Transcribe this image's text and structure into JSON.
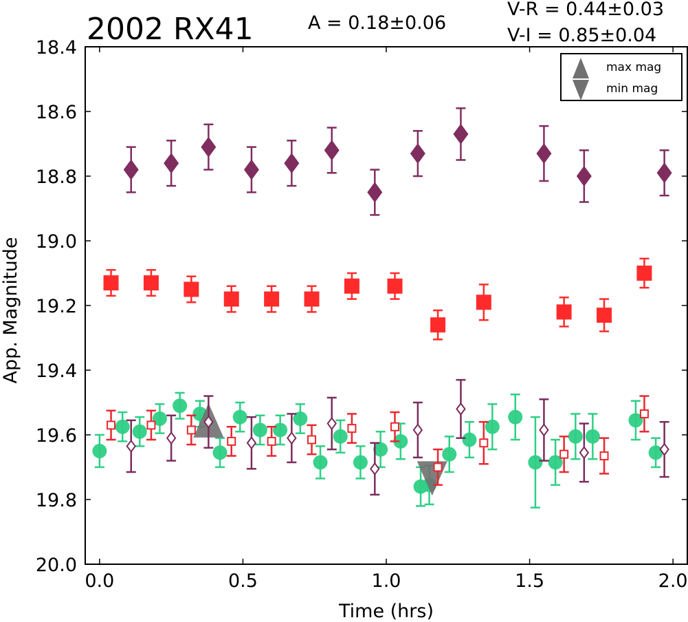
{
  "chart_data": {
    "type": "scatter",
    "title": "2002 RX41",
    "annotations": {
      "amplitude": "A  = 0.18±0.06",
      "v_r": "V-R = 0.44±0.03",
      "v_i": "V-I  = 0.85±0.04"
    },
    "xlabel": "Time (hrs)",
    "ylabel": "App. Magnitude",
    "xlim": [
      -0.05,
      2.05
    ],
    "ylim": [
      18.4,
      20.0
    ],
    "y_inverted": true,
    "xticks": [
      "0.0",
      "0.5",
      "1.0",
      "1.5",
      "2.0"
    ],
    "yticks": [
      "18.4",
      "18.6",
      "18.8",
      "19.0",
      "19.2",
      "19.4",
      "19.6",
      "19.8",
      "20.0"
    ],
    "grid": false,
    "legend_placement": "top-right",
    "legend": [
      {
        "label": "max mag",
        "marker": "triangle-up"
      },
      {
        "label": "min mag",
        "marker": "triangle-down"
      }
    ],
    "colors": {
      "I": "#7f2d5f",
      "R": "#ff2b2b",
      "V": "#2ecf85",
      "R_corrected": "#e8282f",
      "I_corrected": "#7a2c5c",
      "extremes": "#707070"
    },
    "series": [
      {
        "marker": "diamond-filled",
        "color": "#7f2d5f",
        "x": [
          0.11,
          0.25,
          0.38,
          0.53,
          0.67,
          0.81,
          0.96,
          1.11,
          1.26,
          1.55,
          1.69,
          1.97
        ],
        "y": [
          18.78,
          18.76,
          18.71,
          18.78,
          18.76,
          18.72,
          18.85,
          18.73,
          18.67,
          18.73,
          18.8,
          18.79
        ],
        "err": [
          0.07,
          0.07,
          0.07,
          0.07,
          0.07,
          0.07,
          0.07,
          0.07,
          0.08,
          0.085,
          0.08,
          0.07
        ]
      },
      {
        "marker": "square-filled",
        "color": "#ff2b2b",
        "x": [
          0.04,
          0.18,
          0.32,
          0.46,
          0.6,
          0.74,
          0.88,
          1.03,
          1.18,
          1.34,
          1.62,
          1.76,
          1.9
        ],
        "y": [
          19.13,
          19.13,
          19.15,
          19.18,
          19.18,
          19.18,
          19.14,
          19.14,
          19.26,
          19.19,
          19.22,
          19.23,
          19.1
        ],
        "err": [
          0.04,
          0.04,
          0.04,
          0.04,
          0.04,
          0.04,
          0.04,
          0.04,
          0.045,
          0.055,
          0.045,
          0.05,
          0.045
        ]
      },
      {
        "marker": "circle-filled",
        "color": "#2ecf85",
        "x": [
          0.0,
          0.08,
          0.14,
          0.21,
          0.28,
          0.35,
          0.42,
          0.49,
          0.56,
          0.63,
          0.7,
          0.77,
          0.84,
          0.91,
          0.98,
          1.05,
          1.12,
          1.15,
          1.22,
          1.29,
          1.37,
          1.45,
          1.52,
          1.59,
          1.66,
          1.72,
          1.87,
          1.94
        ],
        "y": [
          19.65,
          19.575,
          19.59,
          19.55,
          19.51,
          19.535,
          19.655,
          19.545,
          19.585,
          19.585,
          19.55,
          19.685,
          19.605,
          19.685,
          19.645,
          19.62,
          19.76,
          19.755,
          19.66,
          19.615,
          19.575,
          19.545,
          19.685,
          19.685,
          19.605,
          19.605,
          19.555,
          19.655
        ],
        "err": [
          0.05,
          0.045,
          0.045,
          0.045,
          0.04,
          0.04,
          0.045,
          0.045,
          0.045,
          0.045,
          0.045,
          0.05,
          0.05,
          0.05,
          0.055,
          0.055,
          0.06,
          0.06,
          0.055,
          0.055,
          0.07,
          0.07,
          0.14,
          0.07,
          0.07,
          0.07,
          0.06,
          0.045
        ]
      },
      {
        "marker": "square-open",
        "color": "#e8282f",
        "x": [
          0.04,
          0.18,
          0.32,
          0.46,
          0.6,
          0.74,
          0.88,
          1.03,
          1.18,
          1.34,
          1.62,
          1.76,
          1.9
        ],
        "y": [
          19.57,
          19.57,
          19.585,
          19.62,
          19.62,
          19.615,
          19.58,
          19.575,
          19.7,
          19.625,
          19.66,
          19.665,
          19.535
        ],
        "err": [
          0.045,
          0.045,
          0.045,
          0.045,
          0.045,
          0.045,
          0.045,
          0.045,
          0.055,
          0.065,
          0.055,
          0.055,
          0.055
        ]
      },
      {
        "marker": "diamond-open",
        "color": "#7a2c5c",
        "x": [
          0.11,
          0.25,
          0.38,
          0.53,
          0.67,
          0.81,
          0.96,
          1.11,
          1.26,
          1.55,
          1.69,
          1.97
        ],
        "y": [
          19.635,
          19.61,
          19.56,
          19.625,
          19.61,
          19.565,
          19.705,
          19.585,
          19.52,
          19.585,
          19.655,
          19.645
        ],
        "err": [
          0.08,
          0.07,
          0.08,
          0.08,
          0.075,
          0.08,
          0.08,
          0.085,
          0.09,
          0.095,
          0.09,
          0.085
        ]
      },
      {
        "marker": "triangle-up",
        "color": "#707070",
        "x": [
          0.38
        ],
        "y": [
          19.57
        ]
      },
      {
        "marker": "triangle-down",
        "color": "#707070",
        "x": [
          1.16
        ],
        "y": [
          19.72
        ]
      }
    ]
  }
}
